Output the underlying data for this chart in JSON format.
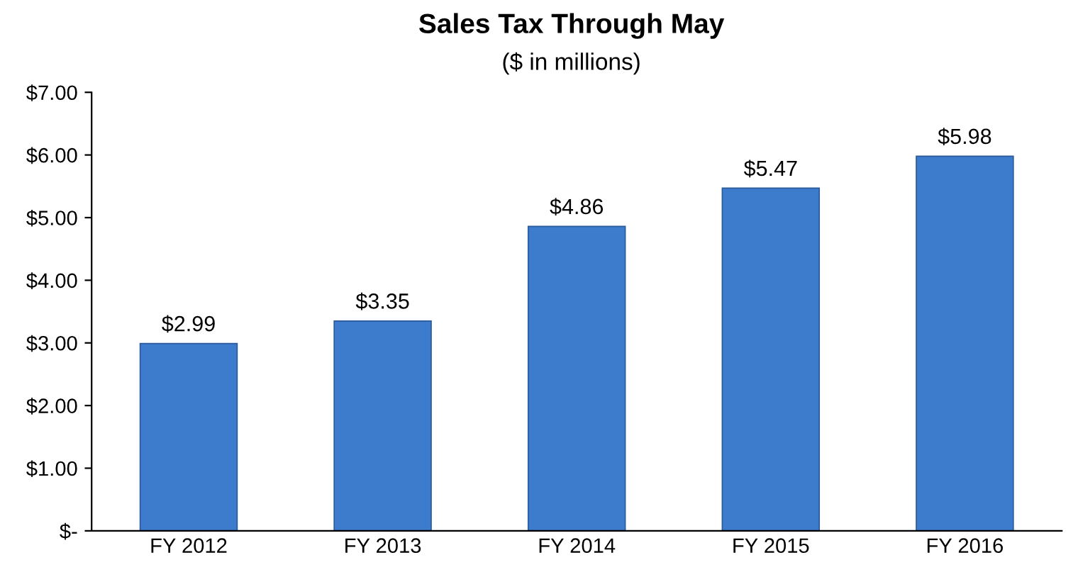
{
  "chart_data": {
    "type": "bar",
    "title": "Sales Tax Through May",
    "subtitle": "($ in millions)",
    "categories": [
      "FY 2012",
      "FY 2013",
      "FY 2014",
      "FY 2015",
      "FY 2016"
    ],
    "values": [
      2.99,
      3.35,
      4.86,
      5.47,
      5.98
    ],
    "value_labels": [
      "$2.99",
      "$3.35",
      "$4.86",
      "$5.47",
      "$5.98"
    ],
    "color": "#3d7bcc",
    "ylim": [
      0,
      7
    ],
    "yticks": [
      {
        "value": 0,
        "label": "$-"
      },
      {
        "value": 1,
        "label": "$1.00"
      },
      {
        "value": 2,
        "label": "$2.00"
      },
      {
        "value": 3,
        "label": "$3.00"
      },
      {
        "value": 4,
        "label": "$4.00"
      },
      {
        "value": 5,
        "label": "$5.00"
      },
      {
        "value": 6,
        "label": "$6.00"
      },
      {
        "value": 7,
        "label": "$7.00"
      }
    ],
    "grid": false,
    "legend": false
  }
}
